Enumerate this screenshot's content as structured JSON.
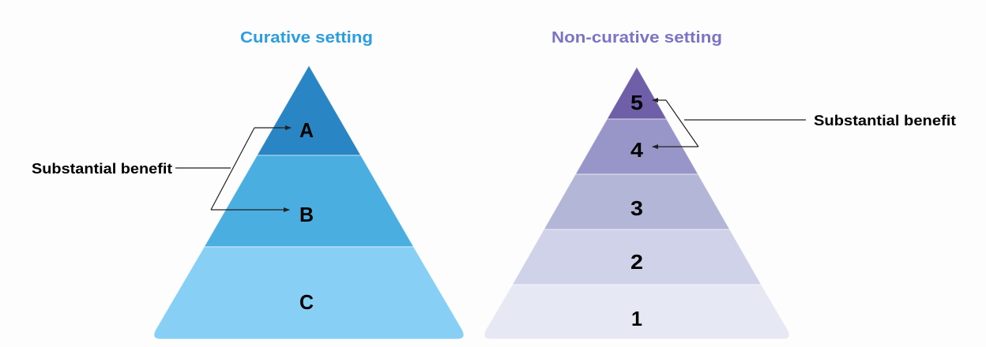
{
  "left": {
    "title": "Curative setting",
    "title_color": "#2a9ee0",
    "levels": [
      {
        "label": "A",
        "color": "#2a85c4"
      },
      {
        "label": "B",
        "color": "#4aaee0"
      },
      {
        "label": "C",
        "color": "#87cff5"
      }
    ],
    "annotation": "Substantial benefit"
  },
  "right": {
    "title": "Non-curative setting",
    "title_color": "#7b74c6",
    "levels": [
      {
        "label": "5",
        "color": "#6e5fa8"
      },
      {
        "label": "4",
        "color": "#9896c8"
      },
      {
        "label": "3",
        "color": "#b3b6d6"
      },
      {
        "label": "2",
        "color": "#cfd2e8"
      },
      {
        "label": "1",
        "color": "#e6e8f4"
      }
    ],
    "annotation": "Substantial benefit"
  }
}
